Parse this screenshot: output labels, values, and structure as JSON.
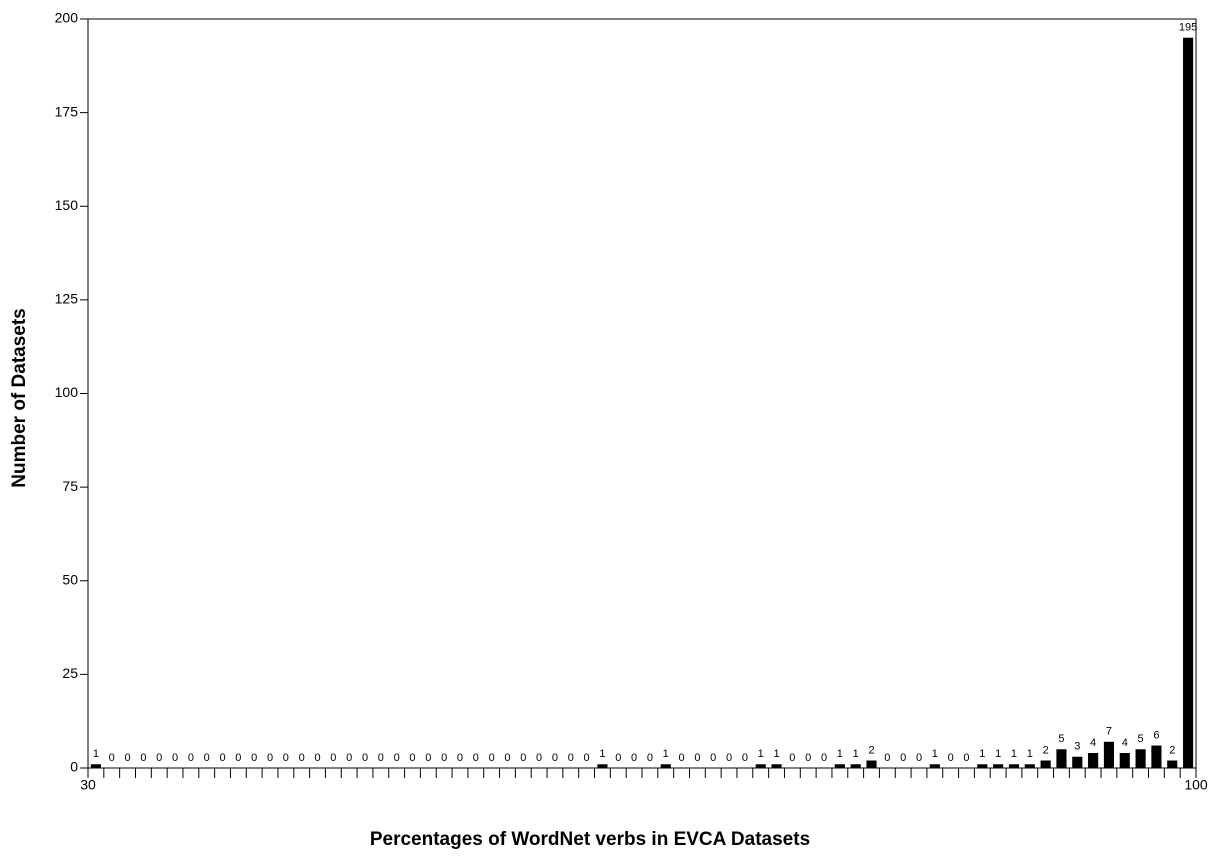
{
  "chart_data": {
    "type": "histogram",
    "xlabel": "Percentages of WordNet verbs in EVCA Datasets",
    "ylabel": "Number of Datasets",
    "bins": [
      30,
      31,
      32,
      33,
      34,
      35,
      36,
      37,
      38,
      39,
      40,
      41,
      42,
      43,
      44,
      45,
      46,
      47,
      48,
      49,
      50,
      51,
      52,
      53,
      54,
      55,
      56,
      57,
      58,
      59,
      60,
      61,
      62,
      63,
      64,
      65,
      66,
      67,
      68,
      69,
      70,
      71,
      72,
      73,
      74,
      75,
      76,
      77,
      78,
      79,
      80,
      81,
      82,
      83,
      84,
      85,
      86,
      87,
      88,
      89,
      90,
      91,
      92,
      93,
      94,
      95,
      96,
      97,
      98,
      99,
      100
    ],
    "values": [
      1,
      0,
      0,
      0,
      0,
      0,
      0,
      0,
      0,
      0,
      0,
      0,
      0,
      0,
      0,
      0,
      0,
      0,
      0,
      0,
      0,
      0,
      0,
      0,
      0,
      0,
      0,
      0,
      0,
      0,
      0,
      0,
      1,
      0,
      0,
      0,
      1,
      0,
      0,
      0,
      0,
      0,
      1,
      1,
      0,
      0,
      0,
      1,
      1,
      2,
      0,
      0,
      0,
      1,
      0,
      0,
      1,
      1,
      1,
      1,
      2,
      5,
      3,
      4,
      7,
      4,
      5,
      6,
      2,
      195
    ],
    "color": "#000000",
    "xlim": [
      30,
      100
    ],
    "xticks": [
      30,
      100
    ],
    "ylim": [
      0,
      200
    ],
    "yticks": [
      0,
      25,
      50,
      75,
      100,
      125,
      150,
      175,
      200
    ]
  }
}
